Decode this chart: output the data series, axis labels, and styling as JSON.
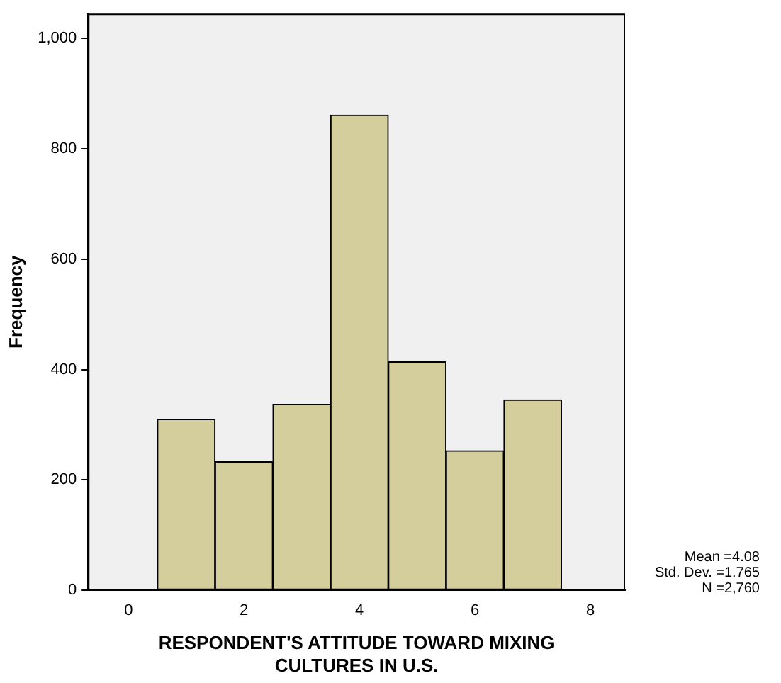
{
  "chart_data": {
    "type": "histogram",
    "xlabel": "RESPONDENT'S ATTITUDE TOWARD MIXING CULTURES IN U.S.",
    "ylabel": "Frequency",
    "bins": [
      0.5,
      1.5,
      2.5,
      3.5,
      4.5,
      5.5,
      6.5,
      7.5
    ],
    "values": [
      310,
      233,
      337,
      861,
      414,
      253,
      345
    ],
    "color": "#d3ce9c",
    "xlim": [
      -0.7,
      8.6
    ],
    "xticks": [
      0,
      2,
      4,
      6,
      8
    ],
    "ylim": [
      0,
      1045
    ],
    "yticks": [
      0,
      200,
      400,
      600,
      800,
      {
        "value": 1000,
        "label": "1,000"
      }
    ],
    "grid": false,
    "legend": false,
    "annotations": [
      "Mean =4.08",
      "Std. Dev. =1.765",
      "N =2,760"
    ]
  }
}
